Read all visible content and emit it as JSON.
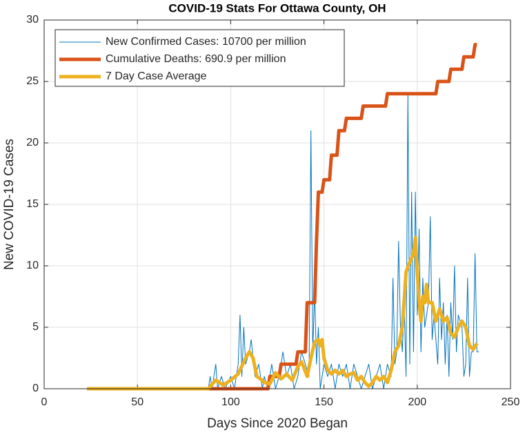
{
  "chart_data": {
    "type": "line",
    "title": "COVID-19 Stats For Ottawa County, OH",
    "xlabel": "Days Since 2020 Began",
    "ylabel": "New COVID-19 Cases",
    "xlim": [
      0,
      250
    ],
    "xticks": [
      0,
      50,
      100,
      150,
      200,
      250
    ],
    "ylim": [
      0,
      30
    ],
    "yticks": [
      0,
      5,
      10,
      15,
      20,
      25,
      30
    ],
    "grid": true,
    "legend": "top-left",
    "series": [
      {
        "name": "New Confirmed Cases: 10700 per million",
        "color": "#0072bd",
        "width": 1,
        "x": [
          23,
          88,
          89,
          90,
          92,
          93,
          95,
          97,
          100,
          102,
          104,
          105,
          106,
          107,
          108,
          110,
          111,
          113,
          115,
          117,
          118,
          120,
          122,
          124,
          126,
          128,
          130,
          132,
          134,
          136,
          138,
          140,
          142,
          143,
          144,
          145,
          146,
          147,
          148,
          150,
          152,
          154,
          156,
          158,
          160,
          162,
          164,
          166,
          168,
          170,
          172,
          174,
          176,
          178,
          180,
          182,
          184,
          186,
          187,
          188,
          189,
          190,
          191,
          192,
          193,
          194,
          195,
          196,
          197,
          198,
          199,
          200,
          201,
          202,
          203,
          204,
          206,
          207,
          208,
          209,
          211,
          212,
          213,
          214,
          215,
          216,
          217,
          218,
          219,
          220,
          221,
          222,
          224,
          225,
          226,
          227,
          228,
          229,
          230,
          231,
          232,
          233
        ],
        "values": [
          0,
          0,
          1,
          0,
          2,
          0,
          1,
          0,
          1,
          0,
          2,
          6,
          1,
          5,
          2,
          3,
          4,
          1,
          2,
          0,
          1,
          0,
          2,
          0,
          1,
          3,
          1,
          2,
          0,
          1,
          3,
          2,
          1,
          21,
          3,
          8,
          2,
          5,
          0,
          2,
          1,
          2,
          0,
          2,
          1,
          2,
          0,
          2,
          1,
          0,
          1,
          2,
          0,
          1,
          2,
          0,
          2,
          1,
          9,
          2,
          3,
          12,
          5,
          3,
          7,
          1,
          24,
          2,
          16,
          3,
          16,
          6,
          13,
          3,
          9,
          5,
          7,
          14,
          4,
          6,
          2,
          9,
          4,
          7,
          2,
          6,
          1,
          7,
          4,
          10,
          3,
          6,
          5,
          1,
          2,
          9,
          1,
          3,
          3,
          11,
          3,
          3
        ]
      },
      {
        "name": "Cumulative Deaths: 690.9 per million",
        "color": "#d95319",
        "width": 5,
        "x": [
          23,
          120,
          121,
          126,
          127,
          135,
          136,
          140,
          141,
          145,
          146,
          147,
          149,
          150,
          153,
          154,
          157,
          158,
          161,
          162,
          170,
          171,
          183,
          184,
          210,
          211,
          217,
          218,
          224,
          225,
          230,
          231,
          232
        ],
        "values": [
          0,
          0,
          1,
          1,
          2,
          2,
          3,
          3,
          7,
          7,
          12,
          16,
          16,
          17,
          17,
          19,
          19,
          21,
          21,
          22,
          22,
          23,
          23,
          24,
          24,
          25,
          25,
          26,
          26,
          27,
          27,
          28,
          28
        ]
      },
      {
        "name": "7 Day Case Average",
        "color": "#edb120",
        "width": 5,
        "x": [
          23,
          88,
          92,
          96,
          100,
          104,
          108,
          110,
          112,
          114,
          116,
          118,
          121,
          124,
          127,
          130,
          133,
          136,
          138,
          141,
          143,
          145,
          147,
          148,
          149,
          150,
          152,
          154,
          156,
          158,
          160,
          162,
          164,
          166,
          168,
          170,
          172,
          174,
          176,
          178,
          180,
          182,
          184,
          186,
          188,
          190,
          192,
          194,
          196,
          198,
          199,
          200,
          201,
          202,
          203,
          204,
          205,
          206,
          208,
          210,
          212,
          214,
          216,
          218,
          220,
          222,
          224,
          226,
          228,
          230,
          232
        ],
        "values": [
          0,
          0,
          0.7,
          0.3,
          0.7,
          1.2,
          2.5,
          3,
          2.5,
          1,
          0.8,
          0.5,
          0.4,
          1.3,
          0.8,
          1.2,
          0.7,
          1.8,
          2.2,
          1,
          2.5,
          3.8,
          4,
          3.5,
          4,
          2.5,
          1.5,
          1.2,
          1.5,
          1.2,
          1.5,
          1,
          1.2,
          1.3,
          0.7,
          1,
          0.5,
          0.2,
          0.5,
          1,
          0.7,
          1,
          0.5,
          1.5,
          3,
          3.5,
          5,
          9.5,
          10.3,
          11,
          12.3,
          9.5,
          7,
          5.5,
          7.5,
          7,
          8.5,
          7,
          7,
          5.5,
          6.5,
          5.5,
          5.8,
          4.5,
          4.2,
          5,
          5.5,
          5,
          3.5,
          3.2,
          3.7
        ]
      }
    ]
  }
}
